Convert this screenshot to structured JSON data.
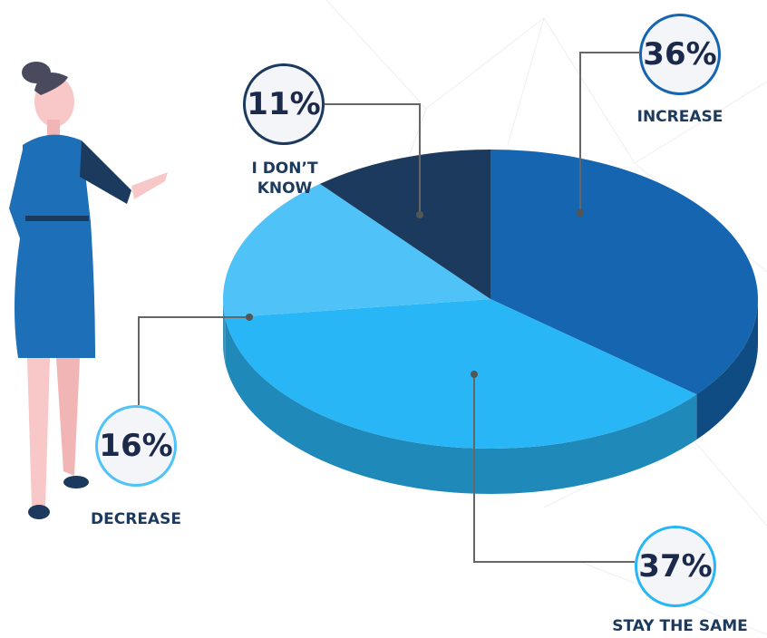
{
  "chart_data": {
    "type": "pie",
    "categories": [
      "INCREASE",
      "STAY THE SAME",
      "DECREASE",
      "I DON’T KNOW"
    ],
    "values": [
      36,
      37,
      16,
      11
    ],
    "value_labels": [
      "36%",
      "37%",
      "16%",
      "11%"
    ],
    "colors": [
      "#1565b0",
      "#29b6f6",
      "#4fc3f7",
      "#1b3a5e"
    ]
  }
}
